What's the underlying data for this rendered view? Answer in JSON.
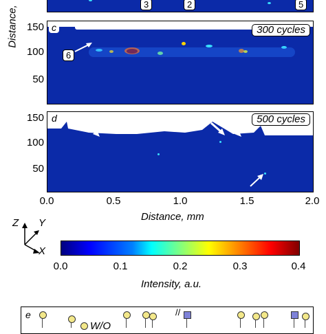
{
  "top_panel": {
    "labels": [
      "3",
      "2",
      "5"
    ]
  },
  "panel_c": {
    "letter": "c",
    "cycles": "300 cycles",
    "marker": "6"
  },
  "panel_d": {
    "letter": "d",
    "cycles": "500 cycles"
  },
  "axes": {
    "ylabel": "Distance, ",
    "yticks": [
      "150",
      "100",
      "50"
    ],
    "xticks": [
      "0.0",
      "0.5",
      "1.0",
      "1.5",
      "2.0"
    ],
    "xlabel": "Distance, mm"
  },
  "orientation": {
    "z": "Z",
    "y": "Y",
    "x": "X"
  },
  "colorbar": {
    "ticks": [
      "0.0",
      "0.1",
      "0.2",
      "0.3",
      "0.4"
    ],
    "label": "Intensity, a.u.",
    "range": [
      0,
      0.4
    ],
    "colormap": "jet"
  },
  "panel_e": {
    "letter": "e",
    "legend_text": "W/O"
  },
  "colors": {
    "plot_bg": "#0b2aa8",
    "circle_marker": "#f3e88a",
    "square_marker": "#7e82d8"
  }
}
